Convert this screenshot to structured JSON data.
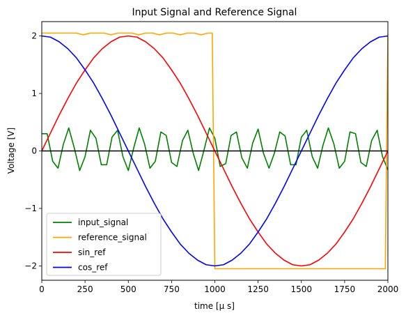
{
  "chart_data": {
    "type": "line",
    "title": "Input Signal and Reference Signal",
    "xlabel": "time [μ s]",
    "ylabel": "Voltage [V]",
    "xlim": [
      0,
      2000
    ],
    "ylim": [
      -2.25,
      2.25
    ],
    "xticks": [
      0,
      250,
      500,
      750,
      1000,
      1250,
      1500,
      1750,
      2000
    ],
    "xtick_labels": [
      "0",
      "250",
      "500",
      "750",
      "1000",
      "1250",
      "1500",
      "1750",
      "2000"
    ],
    "yticks": [
      2,
      1,
      0,
      -1,
      -2
    ],
    "ytick_labels": [
      "2",
      "1",
      "0",
      "−1",
      "−2"
    ],
    "grid": false,
    "legend_position": "lower-left",
    "zero_line_color": "#000000",
    "series": [
      {
        "name": "input_signal",
        "color": "#008000",
        "x": [
          0,
          31,
          63,
          94,
          125,
          156,
          188,
          219,
          250,
          281,
          313,
          344,
          375,
          406,
          438,
          469,
          500,
          531,
          563,
          594,
          625,
          656,
          688,
          719,
          750,
          781,
          813,
          844,
          875,
          906,
          938,
          969,
          1000,
          1031,
          1063,
          1094,
          1125,
          1156,
          1188,
          1219,
          1250,
          1281,
          1313,
          1344,
          1375,
          1406,
          1438,
          1469,
          1500,
          1531,
          1563,
          1594,
          1625,
          1656,
          1688,
          1719,
          1750,
          1781,
          1813,
          1844,
          1875,
          1906,
          1938,
          1969,
          2000
        ],
        "y": [
          0.3,
          0.3,
          -0.18,
          -0.3,
          0.12,
          0.4,
          0.05,
          -0.34,
          -0.1,
          0.36,
          0.22,
          -0.24,
          -0.24,
          0.24,
          0.36,
          -0.1,
          -0.34,
          0.05,
          0.4,
          0.12,
          -0.3,
          -0.18,
          0.33,
          0.27,
          -0.2,
          -0.27,
          0.18,
          0.36,
          -0.04,
          -0.34,
          0.02,
          0.4,
          0.22,
          -0.27,
          -0.22,
          0.27,
          0.33,
          -0.12,
          -0.3,
          0.14,
          0.38,
          -0.04,
          -0.3,
          -0.04,
          0.33,
          0.26,
          -0.24,
          -0.24,
          0.24,
          0.36,
          -0.1,
          -0.3,
          0.1,
          0.4,
          0.12,
          -0.3,
          -0.18,
          0.33,
          0.3,
          -0.2,
          -0.27,
          0.18,
          0.36,
          -0.1,
          -0.33
        ]
      },
      {
        "name": "reference_signal",
        "color": "#ffa500",
        "x": [
          0,
          40,
          80,
          120,
          200,
          240,
          280,
          320,
          360,
          400,
          440,
          480,
          520,
          560,
          600,
          640,
          680,
          720,
          760,
          800,
          840,
          880,
          920,
          960,
          985,
          1000,
          1200,
          1600,
          1960,
          1985,
          2000
        ],
        "y": [
          2.05,
          2.05,
          2.05,
          2.05,
          2.05,
          2.02,
          2.05,
          2.05,
          2.05,
          2.02,
          2.05,
          2.05,
          2.05,
          2.02,
          2.05,
          2.05,
          2.02,
          2.05,
          2.05,
          2.02,
          2.05,
          2.05,
          2.02,
          2.05,
          2.05,
          -2.05,
          -2.05,
          -2.05,
          -2.05,
          -2.05,
          2.05
        ]
      },
      {
        "name": "sin_ref",
        "color": "#ff0000",
        "x": [
          0,
          50,
          100,
          150,
          200,
          250,
          300,
          350,
          400,
          450,
          500,
          550,
          600,
          650,
          700,
          750,
          800,
          850,
          900,
          950,
          1000,
          1050,
          1100,
          1150,
          1200,
          1250,
          1300,
          1350,
          1400,
          1450,
          1500,
          1550,
          1600,
          1650,
          1700,
          1750,
          1800,
          1850,
          1900,
          1950,
          2000
        ],
        "y": [
          0.0,
          0.31,
          0.62,
          0.91,
          1.18,
          1.41,
          1.62,
          1.78,
          1.9,
          1.98,
          2.0,
          1.98,
          1.9,
          1.78,
          1.62,
          1.41,
          1.18,
          0.91,
          0.62,
          0.31,
          0.0,
          -0.31,
          -0.62,
          -0.91,
          -1.18,
          -1.41,
          -1.62,
          -1.78,
          -1.9,
          -1.98,
          -2.0,
          -1.98,
          -1.9,
          -1.78,
          -1.62,
          -1.41,
          -1.18,
          -0.91,
          -0.62,
          -0.31,
          0.0
        ]
      },
      {
        "name": "cos_ref",
        "color": "#0000ff",
        "x": [
          0,
          50,
          100,
          150,
          200,
          250,
          300,
          350,
          400,
          450,
          500,
          550,
          600,
          650,
          700,
          750,
          800,
          850,
          900,
          950,
          1000,
          1050,
          1100,
          1150,
          1200,
          1250,
          1300,
          1350,
          1400,
          1450,
          1500,
          1550,
          1600,
          1650,
          1700,
          1750,
          1800,
          1850,
          1900,
          1950,
          2000
        ],
        "y": [
          2.0,
          1.98,
          1.9,
          1.78,
          1.62,
          1.41,
          1.18,
          0.91,
          0.62,
          0.31,
          0.0,
          -0.31,
          -0.62,
          -0.91,
          -1.18,
          -1.41,
          -1.62,
          -1.78,
          -1.9,
          -1.98,
          -2.0,
          -1.98,
          -1.9,
          -1.78,
          -1.62,
          -1.41,
          -1.18,
          -0.91,
          -0.62,
          -0.31,
          0.0,
          0.31,
          0.62,
          0.91,
          1.18,
          1.41,
          1.62,
          1.78,
          1.9,
          1.98,
          2.0
        ]
      }
    ]
  }
}
